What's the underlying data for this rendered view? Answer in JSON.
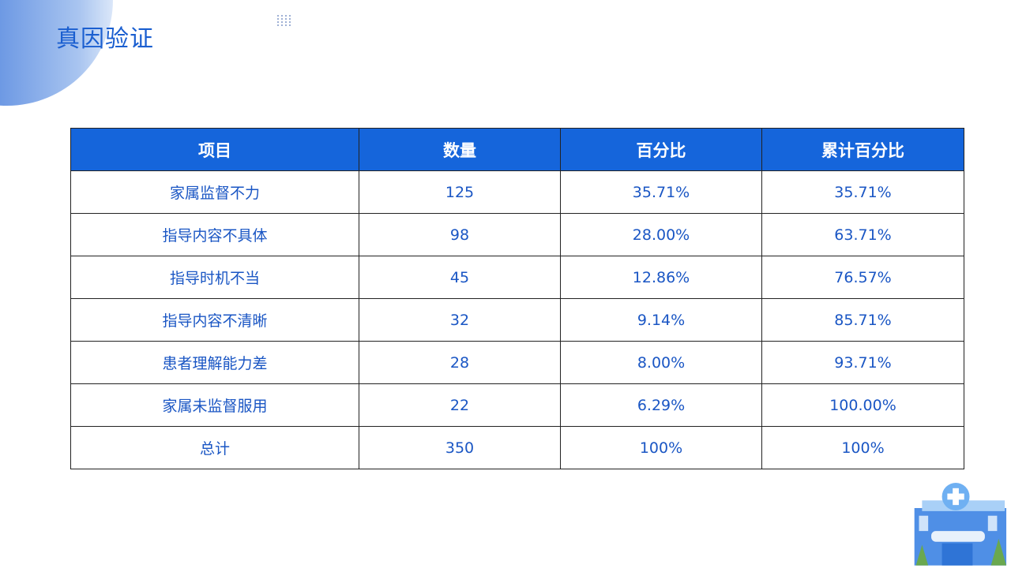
{
  "title": "真因验证",
  "table": {
    "headers": [
      "项目",
      "数量",
      "百分比",
      "累计百分比"
    ],
    "rows": [
      [
        "家属监督不力",
        "125",
        "35.71%",
        "35.71%"
      ],
      [
        "指导内容不具体",
        "98",
        "28.00%",
        "63.71%"
      ],
      [
        "指导时机不当",
        "45",
        "12.86%",
        "76.57%"
      ],
      [
        "指导内容不清晰",
        "32",
        "9.14%",
        "85.71%"
      ],
      [
        "患者理解能力差",
        "28",
        "8.00%",
        "93.71%"
      ],
      [
        "家属未监督服用",
        "22",
        "6.29%",
        "100.00%"
      ],
      [
        "总计",
        "350",
        "100%",
        "100%"
      ]
    ]
  },
  "colors": {
    "header_bg": "#1565db",
    "text": "#1a56c4",
    "title": "#1b5fd0"
  },
  "decor": {
    "illustration": "hospital-illustration"
  }
}
